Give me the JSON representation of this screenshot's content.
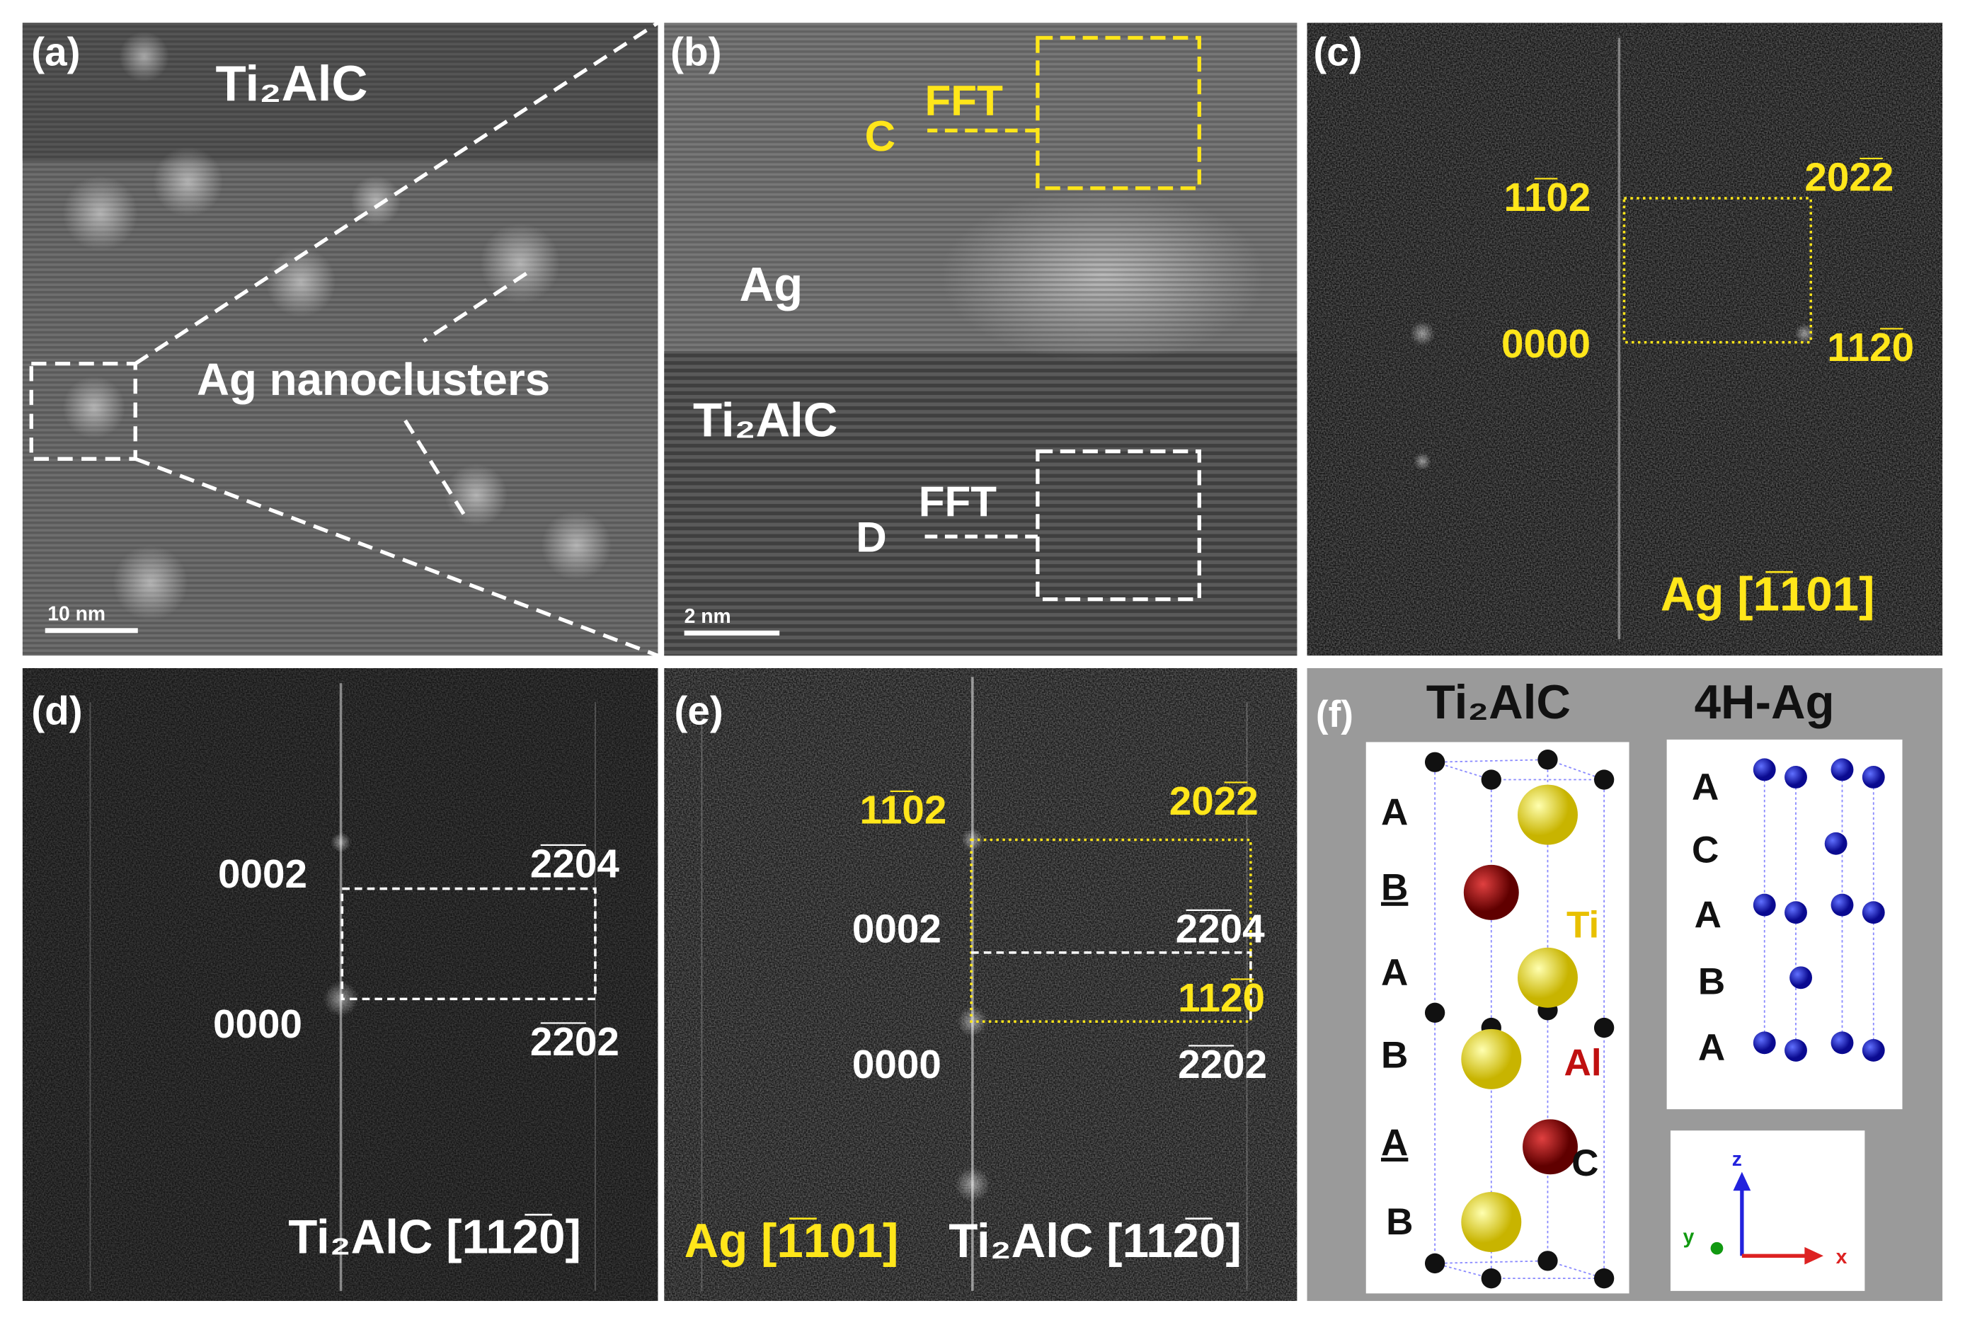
{
  "panels": [
    {
      "label": "(a)",
      "texts": [
        "Ti₂AlC",
        "Ag nanoclusters"
      ],
      "scale_bar": "10 nm"
    },
    {
      "label": "(b)",
      "texts": [
        "Ag",
        "Ti₂AlC",
        "FFT",
        "C",
        "FFT",
        "D"
      ],
      "scale_bar": "2 nm"
    },
    {
      "label": "(c)",
      "indices": [
        "11̅02",
        "202̅2",
        "0000",
        "112̅0"
      ],
      "zone_axis": "Ag [1̅101]"
    },
    {
      "label": "(d)",
      "indices": [
        "0002",
        "2̅2̅04",
        "0000",
        "2̅2̅02"
      ],
      "zone_axis": "Ti₂AlC [112̅0]"
    },
    {
      "label": "(e)",
      "indices": [
        "11̅02",
        "202̅2",
        "0002",
        "2̅2̅04",
        "112̅0",
        "0000",
        "2̅2̅02"
      ],
      "zone_axis": [
        "Ag [1̅101]",
        "Ti₂AlC [112̅0]"
      ]
    },
    {
      "label": "(f)",
      "titles": [
        "Ti₂AlC",
        "4H-Ag"
      ],
      "ti2alc_layers": [
        "A",
        "B",
        "A",
        "B",
        "A",
        "B"
      ],
      "atoms": [
        "Ti",
        "Al",
        "C"
      ],
      "ag_layers": [
        "A",
        "C",
        "A",
        "B",
        "A"
      ],
      "axes": [
        "z",
        "y",
        "x"
      ]
    }
  ]
}
